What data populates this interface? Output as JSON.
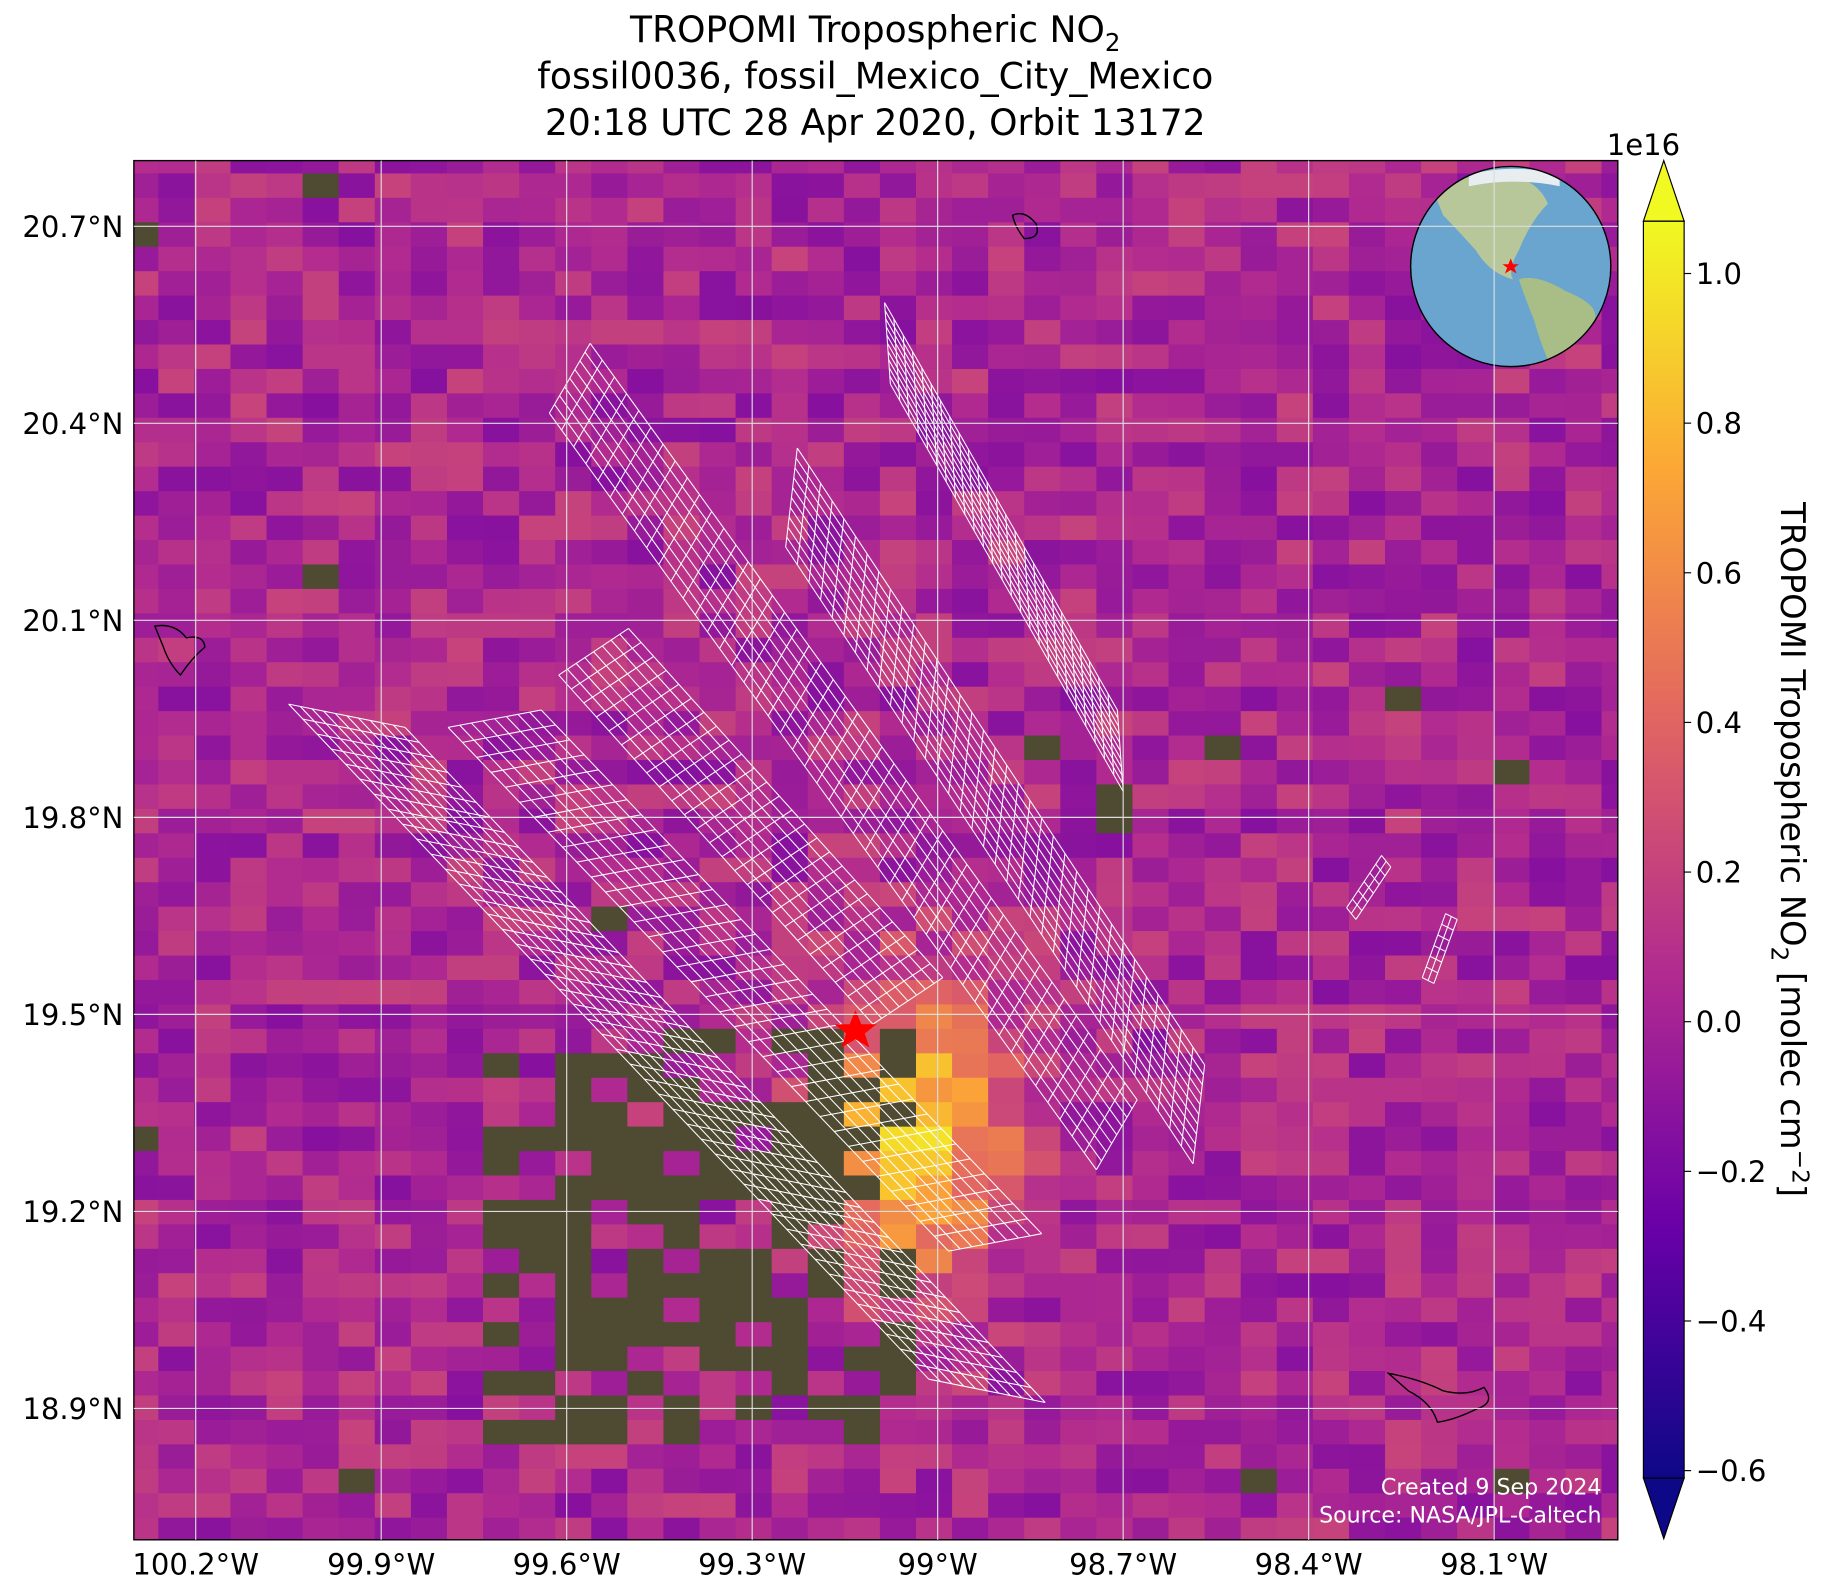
{
  "title": {
    "line1": "TROPOMI Tropospheric NO",
    "line1_subscript": "2",
    "line2": "fossil0036, fossil_Mexico_City_Mexico",
    "line3": "20:18 UTC 28 Apr 2020, Orbit 13172"
  },
  "map": {
    "lonlim": [
      -100.3,
      -97.9
    ],
    "latlim": [
      18.7,
      20.8
    ],
    "grid": true,
    "lonticks": [
      {
        "value": -100.2,
        "label": "100.2°W"
      },
      {
        "value": -99.9,
        "label": "99.9°W"
      },
      {
        "value": -99.6,
        "label": "99.6°W"
      },
      {
        "value": -99.3,
        "label": "99.3°W"
      },
      {
        "value": -99.0,
        "label": "99°W"
      },
      {
        "value": -98.7,
        "label": "98.7°W"
      },
      {
        "value": -98.4,
        "label": "98.4°W"
      },
      {
        "value": -98.1,
        "label": "98.1°W"
      }
    ],
    "latticks": [
      {
        "value": 18.9,
        "label": "18.9°N"
      },
      {
        "value": 19.2,
        "label": "19.2°N"
      },
      {
        "value": 19.5,
        "label": "19.5°N"
      },
      {
        "value": 19.8,
        "label": "19.8°N"
      },
      {
        "value": 20.1,
        "label": "20.1°N"
      },
      {
        "value": 20.4,
        "label": "20.4°N"
      },
      {
        "value": 20.7,
        "label": "20.7°N"
      }
    ]
  },
  "colorbar": {
    "label": "TROPOMI Tropospheric NO",
    "label_subscript": "2",
    "label_unit": " [molec cm",
    "label_superscript": "−2",
    "label_end": "]",
    "multiplier": "1e16",
    "clim": [
      -0.61,
      1.07
    ],
    "extend": "both",
    "colors": [
      "#0d0887",
      "#6a00a8",
      "#b12a90",
      "#e16462",
      "#fca636",
      "#f0f921"
    ],
    "ticks": [
      {
        "value": -0.6,
        "label": "−0.6"
      },
      {
        "value": -0.4,
        "label": "−0.4"
      },
      {
        "value": -0.2,
        "label": "−0.2"
      },
      {
        "value": 0.0,
        "label": "0.0"
      },
      0.2,
      0.4,
      0.6,
      0.8,
      {
        "value": 1.0,
        "label": "1.0"
      }
    ]
  },
  "footer": {
    "created": "Created 9 Sep 2024",
    "source": "Source: NASA/JPL-Caltech"
  }
}
